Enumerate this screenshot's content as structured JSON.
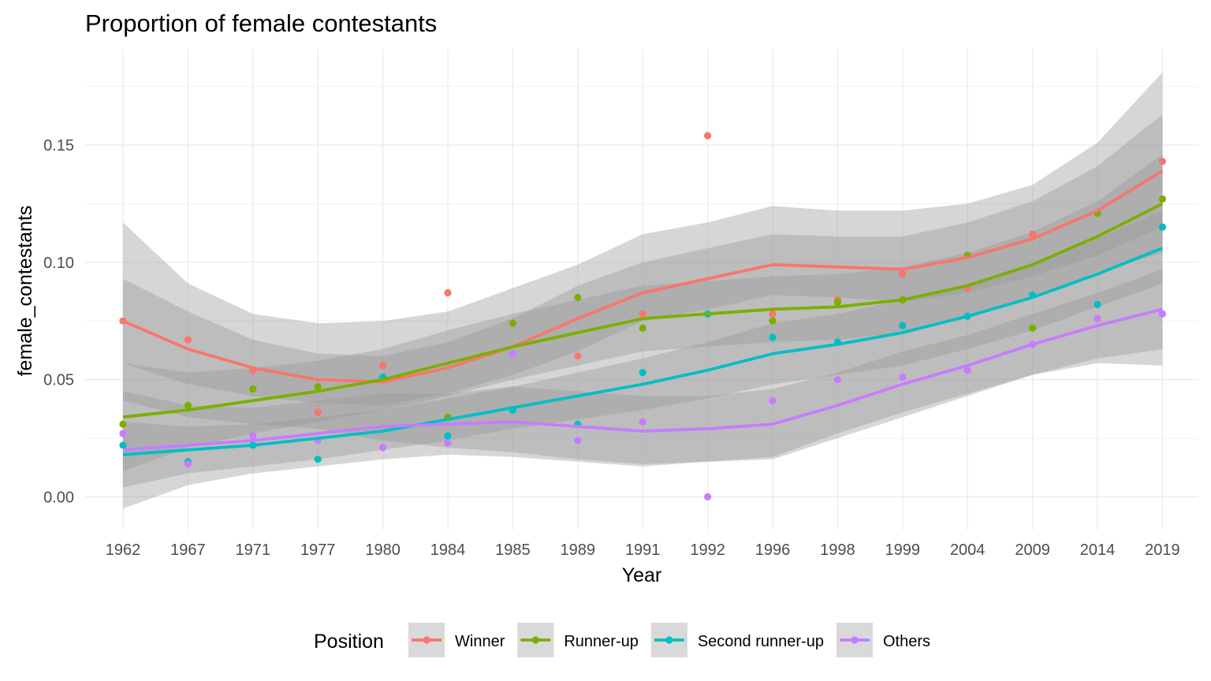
{
  "chart_data": {
    "type": "line",
    "title": "Proportion of female contestants",
    "xlabel": "Year",
    "ylabel": "female_contestants",
    "categories": [
      "1962",
      "1967",
      "1971",
      "1977",
      "1980",
      "1984",
      "1985",
      "1989",
      "1991",
      "1992",
      "1996",
      "1998",
      "1999",
      "2004",
      "2009",
      "2014",
      "2019"
    ],
    "ylim": [
      -0.014,
      0.191
    ],
    "yticks": [
      0.0,
      0.05,
      0.1,
      0.15
    ],
    "ytick_labels": [
      "0.00",
      "0.05",
      "0.10",
      "0.15"
    ],
    "grid": true,
    "legend": {
      "title": "Position",
      "placement": "bottom"
    },
    "series": [
      {
        "name": "Winner",
        "color": "#F8766D",
        "points": [
          0.075,
          0.067,
          0.054,
          0.036,
          0.056,
          0.087,
          0.061,
          0.06,
          0.078,
          0.154,
          0.078,
          0.084,
          0.095,
          0.089,
          0.112,
          0.121,
          0.143
        ],
        "smooth": [
          0.075,
          0.063,
          0.055,
          0.05,
          0.049,
          0.055,
          0.064,
          0.076,
          0.087,
          0.093,
          0.099,
          0.098,
          0.097,
          0.102,
          0.11,
          0.122,
          0.139
        ],
        "band_lower": [
          0.057,
          0.048,
          0.043,
          0.04,
          0.039,
          0.044,
          0.052,
          0.062,
          0.075,
          0.08,
          0.086,
          0.085,
          0.083,
          0.087,
          0.094,
          0.103,
          0.115
        ],
        "band_upper": [
          0.093,
          0.079,
          0.067,
          0.061,
          0.06,
          0.066,
          0.076,
          0.09,
          0.1,
          0.106,
          0.112,
          0.111,
          0.111,
          0.117,
          0.126,
          0.141,
          0.163
        ]
      },
      {
        "name": "Runner-up",
        "color": "#7CAE00",
        "points": [
          0.031,
          0.039,
          0.046,
          0.047,
          0.051,
          0.034,
          0.074,
          0.085,
          0.072,
          0.078,
          0.075,
          0.083,
          0.084,
          0.103,
          0.072,
          0.121,
          0.127
        ],
        "smooth": [
          0.034,
          0.037,
          0.041,
          0.045,
          0.05,
          0.057,
          0.064,
          0.07,
          0.076,
          0.078,
          0.08,
          0.081,
          0.084,
          0.09,
          0.099,
          0.111,
          0.125
        ],
        "band_lower": [
          0.011,
          0.021,
          0.027,
          0.032,
          0.037,
          0.043,
          0.05,
          0.056,
          0.062,
          0.064,
          0.066,
          0.067,
          0.07,
          0.076,
          0.085,
          0.096,
          0.104
        ],
        "band_upper": [
          0.057,
          0.053,
          0.055,
          0.058,
          0.063,
          0.071,
          0.078,
          0.084,
          0.09,
          0.092,
          0.094,
          0.095,
          0.098,
          0.104,
          0.113,
          0.126,
          0.146
        ]
      },
      {
        "name": "Second runner-up",
        "color": "#00BFC4",
        "points": [
          0.022,
          0.015,
          0.022,
          0.016,
          0.051,
          0.026,
          0.037,
          0.031,
          0.053,
          0.078,
          0.068,
          0.066,
          0.073,
          0.077,
          0.086,
          0.082,
          0.115
        ],
        "smooth": [
          0.018,
          0.02,
          0.022,
          0.025,
          0.028,
          0.033,
          0.038,
          0.043,
          0.048,
          0.054,
          0.061,
          0.065,
          0.07,
          0.077,
          0.085,
          0.095,
          0.106
        ],
        "band_lower": [
          0.004,
          0.01,
          0.013,
          0.016,
          0.02,
          0.024,
          0.029,
          0.033,
          0.037,
          0.042,
          0.048,
          0.052,
          0.056,
          0.063,
          0.071,
          0.081,
          0.091
        ],
        "band_upper": [
          0.032,
          0.03,
          0.031,
          0.034,
          0.037,
          0.042,
          0.047,
          0.053,
          0.059,
          0.066,
          0.074,
          0.078,
          0.084,
          0.091,
          0.099,
          0.11,
          0.122
        ]
      },
      {
        "name": "Others",
        "color": "#C77CFF",
        "points": [
          0.027,
          0.014,
          0.026,
          0.024,
          0.021,
          0.023,
          0.061,
          0.024,
          0.032,
          0.0,
          0.041,
          0.05,
          0.051,
          0.054,
          0.065,
          0.076,
          0.078
        ],
        "smooth": [
          0.02,
          0.022,
          0.024,
          0.027,
          0.03,
          0.031,
          0.032,
          0.03,
          0.028,
          0.029,
          0.031,
          0.039,
          0.048,
          0.056,
          0.065,
          0.073,
          0.08
        ],
        "band_lower": [
          -0.005,
          0.005,
          0.01,
          0.013,
          0.016,
          0.018,
          0.017,
          0.015,
          0.013,
          0.015,
          0.016,
          0.025,
          0.034,
          0.043,
          0.052,
          0.059,
          0.063
        ],
        "band_upper": [
          0.045,
          0.039,
          0.038,
          0.041,
          0.044,
          0.044,
          0.047,
          0.045,
          0.043,
          0.043,
          0.046,
          0.053,
          0.062,
          0.069,
          0.078,
          0.087,
          0.097
        ]
      }
    ],
    "extra_band_upper_gray": [
      0.117,
      0.091,
      0.078,
      0.074,
      0.075,
      0.079,
      0.089,
      0.099,
      0.112,
      0.117,
      0.124,
      0.122,
      0.122,
      0.125,
      0.133,
      0.151,
      0.181
    ],
    "extra_band_lower_gray": [
      0.041,
      0.034,
      0.031,
      0.029,
      0.024,
      0.021,
      0.019,
      0.016,
      0.014,
      0.015,
      0.017,
      0.027,
      0.036,
      0.044,
      0.052,
      0.057,
      0.056
    ]
  }
}
